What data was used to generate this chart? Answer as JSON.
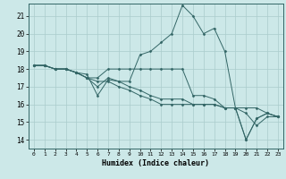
{
  "xlabel": "Humidex (Indice chaleur)",
  "xlim": [
    -0.5,
    23.5
  ],
  "ylim": [
    13.5,
    21.7
  ],
  "yticks": [
    14,
    15,
    16,
    17,
    18,
    19,
    20,
    21
  ],
  "xticks": [
    0,
    1,
    2,
    3,
    4,
    5,
    6,
    7,
    8,
    9,
    10,
    11,
    12,
    13,
    14,
    15,
    16,
    17,
    18,
    19,
    20,
    21,
    22,
    23
  ],
  "bg_color": "#cce8e8",
  "grid_color": "#aacccc",
  "line_color": "#336666",
  "lines": [
    [
      18.2,
      18.2,
      18.0,
      18.0,
      17.8,
      17.7,
      16.5,
      17.4,
      17.3,
      17.3,
      18.8,
      19.0,
      19.5,
      20.0,
      21.6,
      21.0,
      20.0,
      20.3,
      19.0,
      15.8,
      14.0,
      15.2,
      15.5,
      15.3
    ],
    [
      18.2,
      18.2,
      18.0,
      18.0,
      17.8,
      17.5,
      17.3,
      17.3,
      17.0,
      16.8,
      16.5,
      16.3,
      16.0,
      16.0,
      16.0,
      16.0,
      16.0,
      16.0,
      15.8,
      15.8,
      15.8,
      15.8,
      15.5,
      15.3
    ],
    [
      18.2,
      18.2,
      18.0,
      18.0,
      17.8,
      17.5,
      17.0,
      17.5,
      17.3,
      17.0,
      16.8,
      16.5,
      16.3,
      16.3,
      16.3,
      16.0,
      16.0,
      16.0,
      15.8,
      15.8,
      15.5,
      14.8,
      15.3,
      15.3
    ],
    [
      18.2,
      18.2,
      18.0,
      18.0,
      17.8,
      17.5,
      17.5,
      18.0,
      18.0,
      18.0,
      18.0,
      18.0,
      18.0,
      18.0,
      18.0,
      16.5,
      16.5,
      16.3,
      15.8,
      15.8,
      14.0,
      15.2,
      15.5,
      15.3
    ]
  ]
}
